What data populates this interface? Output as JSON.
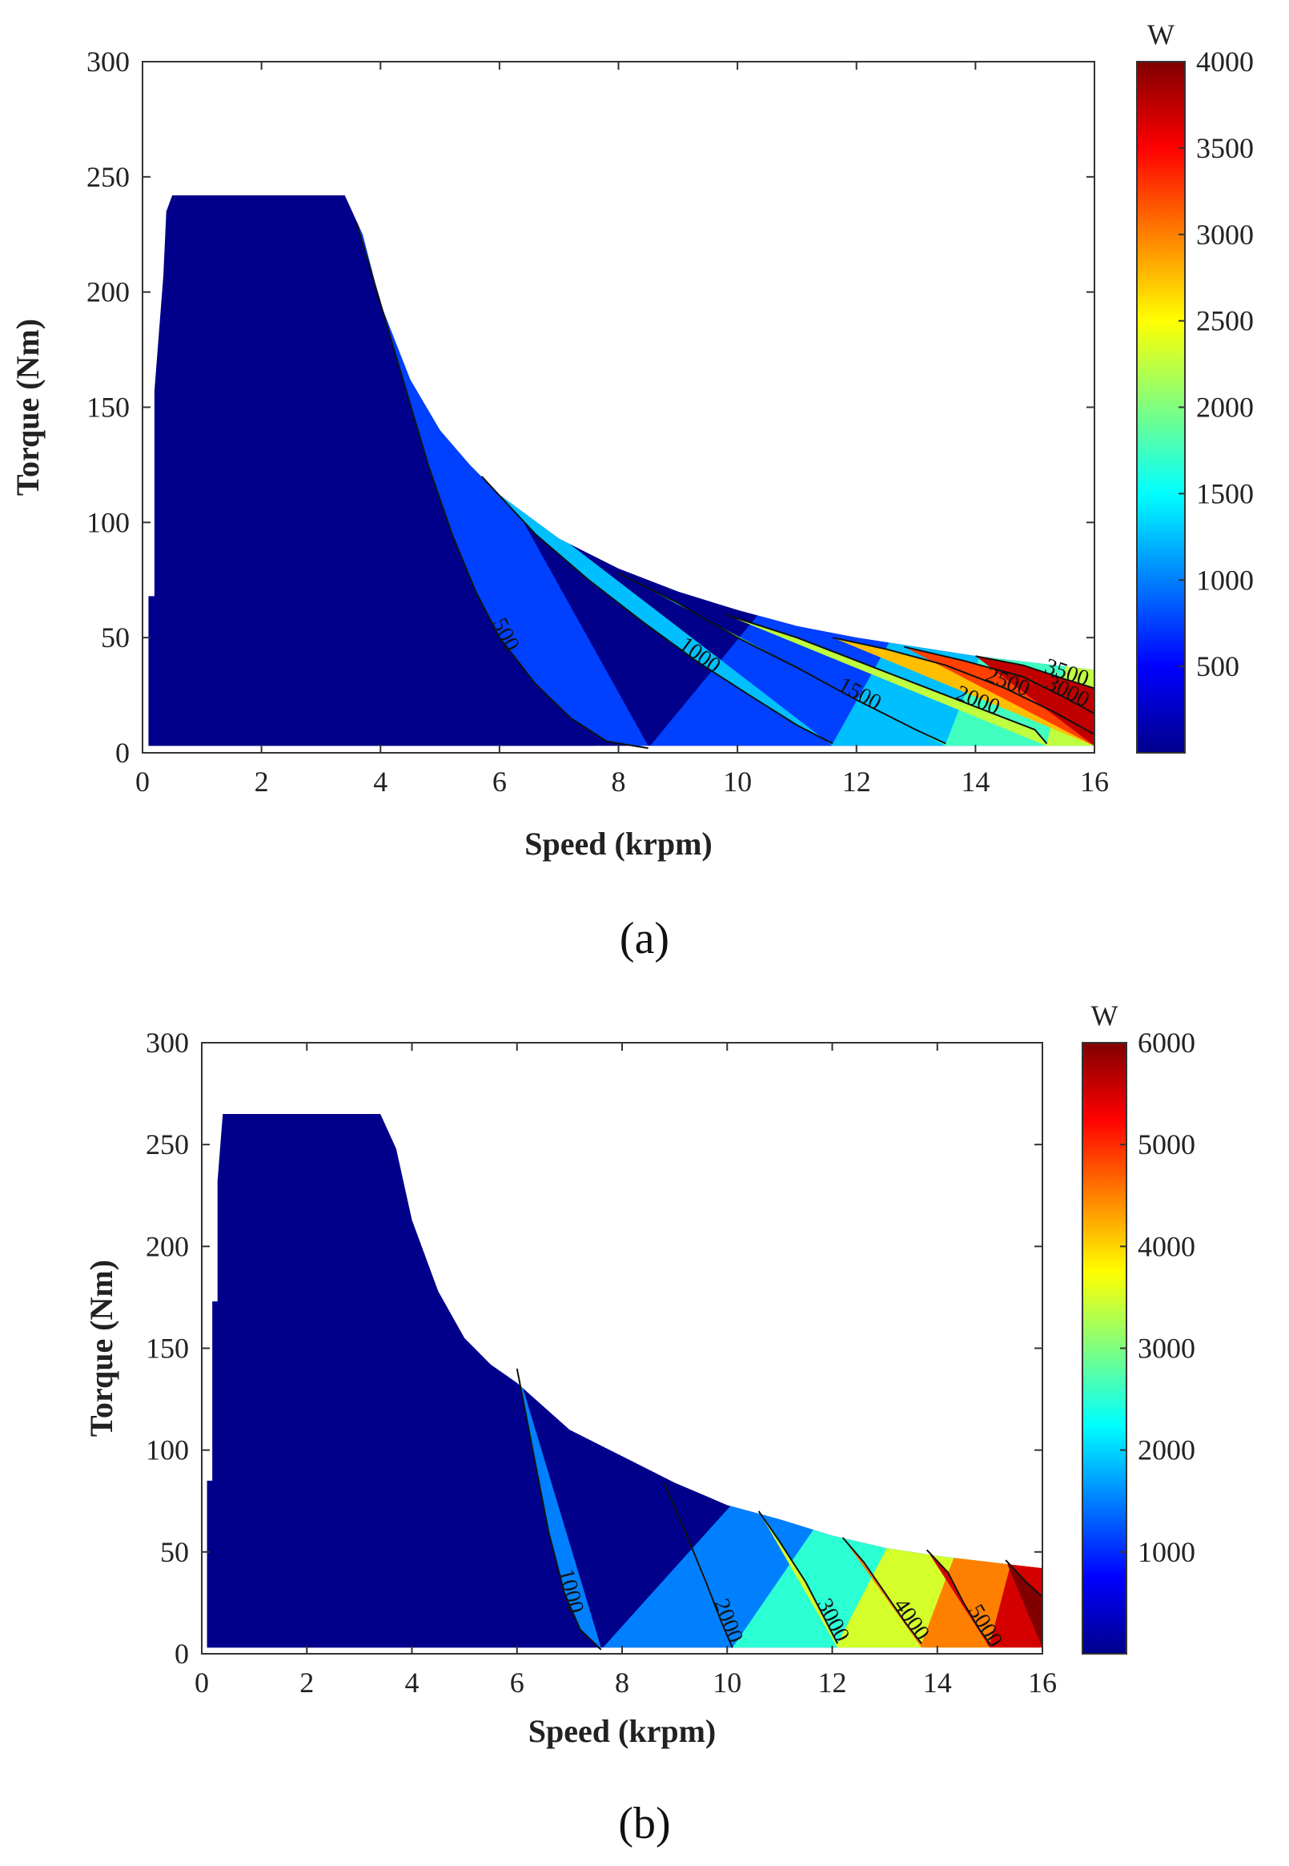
{
  "chart_data": [
    {
      "type": "contour",
      "panel_label": "(a)",
      "xlabel": "Speed (krpm)",
      "ylabel": "Torque (Nm)",
      "xlim": [
        0,
        16
      ],
      "ylim": [
        0,
        300
      ],
      "xticks": [
        "0",
        "2",
        "4",
        "6",
        "8",
        "10",
        "12",
        "14",
        "16"
      ],
      "yticks": [
        "0",
        "50",
        "100",
        "150",
        "200",
        "250",
        "300"
      ],
      "colorbar": {
        "unit": "W",
        "min": 0,
        "max": 4000,
        "ticks": [
          "500",
          "1000",
          "1500",
          "2000",
          "2500",
          "3000",
          "3500",
          "4000"
        ],
        "tick_values": [
          500,
          1000,
          1500,
          2000,
          2500,
          3000,
          3500,
          4000
        ]
      },
      "max_torque_curve": {
        "speed": [
          0.1,
          0.1,
          0.2,
          0.2,
          0.35,
          0.4,
          0.5,
          3.4,
          3.7,
          4.0,
          4.5,
          5.0,
          5.5,
          6.0,
          7.0,
          8.0,
          9.0,
          10.0,
          11.0,
          12.0,
          13.0,
          14.0,
          15.0,
          16.0
        ],
        "torque": [
          0,
          68,
          68,
          157,
          207,
          235,
          242,
          242,
          225,
          195,
          162,
          140,
          125,
          112,
          93,
          80,
          70,
          62,
          55,
          50,
          46,
          42,
          39,
          36
        ]
      },
      "contour_levels": [
        {
          "level": 500,
          "label": "500",
          "speed": [
            3.6,
            4.0,
            4.4,
            4.8,
            5.2,
            5.6,
            6.0,
            6.6,
            7.2,
            7.8,
            8.5
          ],
          "torque": [
            230,
            195,
            160,
            125,
            95,
            70,
            50,
            30,
            15,
            5,
            2
          ]
        },
        {
          "level": 1000,
          "label": "1000",
          "speed": [
            5.7,
            6.6,
            7.5,
            8.4,
            9.3,
            10.2,
            11.0,
            11.6
          ],
          "torque": [
            120,
            95,
            75,
            57,
            40,
            25,
            12,
            4
          ]
        },
        {
          "level": 1500,
          "label": "1500",
          "speed": [
            8.0,
            9.0,
            10.0,
            11.0,
            12.0,
            13.0,
            13.5
          ],
          "torque": [
            78,
            65,
            50,
            37,
            23,
            10,
            4
          ]
        },
        {
          "level": 2000,
          "label": "2000",
          "speed": [
            9.8,
            11.0,
            12.0,
            13.0,
            14.0,
            15.0,
            15.2
          ],
          "torque": [
            60,
            50,
            40,
            30,
            20,
            10,
            4
          ]
        },
        {
          "level": 2500,
          "label": "2500",
          "speed": [
            11.6,
            12.5,
            13.5,
            14.5,
            15.3,
            16.0
          ],
          "torque": [
            50,
            45,
            38,
            28,
            18,
            8
          ]
        },
        {
          "level": 3000,
          "label": "3000",
          "speed": [
            12.8,
            13.8,
            14.8,
            15.5,
            16.0
          ],
          "torque": [
            46,
            40,
            33,
            24,
            17
          ]
        },
        {
          "level": 3500,
          "label": "3500",
          "speed": [
            14.0,
            14.8,
            15.5,
            16.0
          ],
          "torque": [
            42,
            38,
            32,
            28
          ]
        }
      ]
    },
    {
      "type": "contour",
      "panel_label": "(b)",
      "xlabel": "Speed (krpm)",
      "ylabel": "Torque (Nm)",
      "xlim": [
        0,
        16
      ],
      "ylim": [
        0,
        300
      ],
      "xticks": [
        "0",
        "2",
        "4",
        "6",
        "8",
        "10",
        "12",
        "14",
        "16"
      ],
      "yticks": [
        "0",
        "50",
        "100",
        "150",
        "200",
        "250",
        "300"
      ],
      "colorbar": {
        "unit": "W",
        "min": 0,
        "max": 6000,
        "ticks": [
          "1000",
          "2000",
          "3000",
          "4000",
          "5000",
          "6000"
        ],
        "tick_values": [
          1000,
          2000,
          3000,
          4000,
          5000,
          6000
        ]
      },
      "max_torque_curve": {
        "speed": [
          0.1,
          0.1,
          0.2,
          0.2,
          0.3,
          0.3,
          0.4,
          3.4,
          3.7,
          4.0,
          4.5,
          5.0,
          5.5,
          6.0,
          7.0,
          8.0,
          9.0,
          10.0,
          11.0,
          12.0,
          13.0,
          14.0,
          15.0,
          16.0
        ],
        "torque": [
          0,
          85,
          85,
          173,
          173,
          232,
          265,
          265,
          248,
          213,
          178,
          155,
          142,
          133,
          110,
          97,
          84,
          73,
          66,
          58,
          52,
          48,
          45,
          42
        ]
      },
      "contour_levels": [
        {
          "level": 1000,
          "label": "1000",
          "speed": [
            6.0,
            6.3,
            6.6,
            6.9,
            7.2,
            7.6
          ],
          "torque": [
            140,
            100,
            60,
            30,
            12,
            2
          ]
        },
        {
          "level": 2000,
          "label": "2000",
          "speed": [
            8.8,
            9.2,
            9.6,
            9.9,
            10.1
          ],
          "torque": [
            84,
            60,
            35,
            15,
            3
          ]
        },
        {
          "level": 3000,
          "label": "3000",
          "speed": [
            10.6,
            11.0,
            11.5,
            11.9,
            12.1
          ],
          "torque": [
            70,
            55,
            35,
            15,
            5
          ]
        },
        {
          "level": 4000,
          "label": "4000",
          "speed": [
            12.2,
            12.6,
            13.0,
            13.4,
            13.7
          ],
          "torque": [
            57,
            45,
            30,
            15,
            5
          ]
        },
        {
          "level": 5000,
          "label": "5000",
          "speed": [
            13.8,
            14.2,
            14.5,
            14.8,
            15.0
          ],
          "torque": [
            51,
            40,
            25,
            12,
            5
          ]
        },
        {
          "level": 6000,
          "label": "",
          "speed": [
            15.3,
            15.7,
            16.0
          ],
          "torque": [
            46,
            35,
            28
          ]
        }
      ]
    }
  ]
}
